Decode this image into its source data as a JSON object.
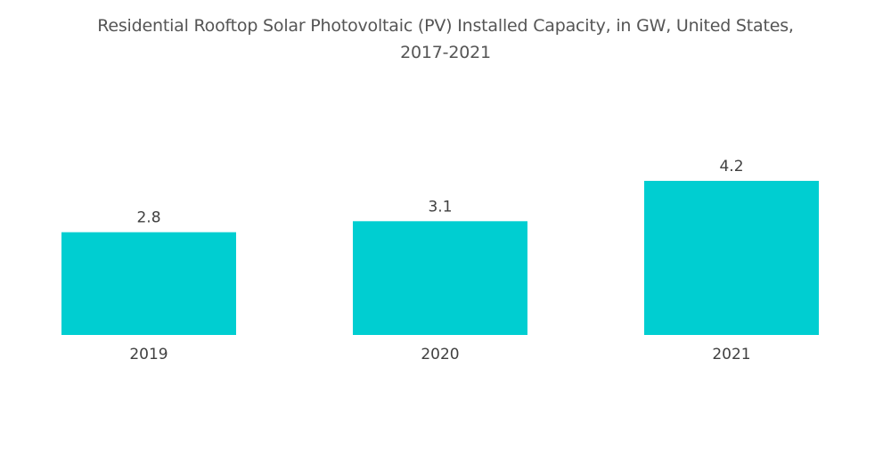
{
  "chart_data": {
    "type": "bar",
    "title": "Residential Rooftop Solar Photovoltaic (PV) Installed Capacity, in GW, United States, 2017-2021",
    "title_lines": [
      "Residential Rooftop Solar Photovoltaic (PV) Installed Capacity, in GW, United States,",
      "2017-2021"
    ],
    "categories": [
      "2019",
      "2020",
      "2021"
    ],
    "values": [
      2.8,
      3.1,
      4.2
    ],
    "value_labels": [
      "2.8",
      "3.1",
      "4.2"
    ],
    "xlabel": "",
    "ylabel": "",
    "ylim": [
      0,
      4.2
    ],
    "grid": false,
    "legend": "none",
    "bar_color": "#00CED1"
  }
}
